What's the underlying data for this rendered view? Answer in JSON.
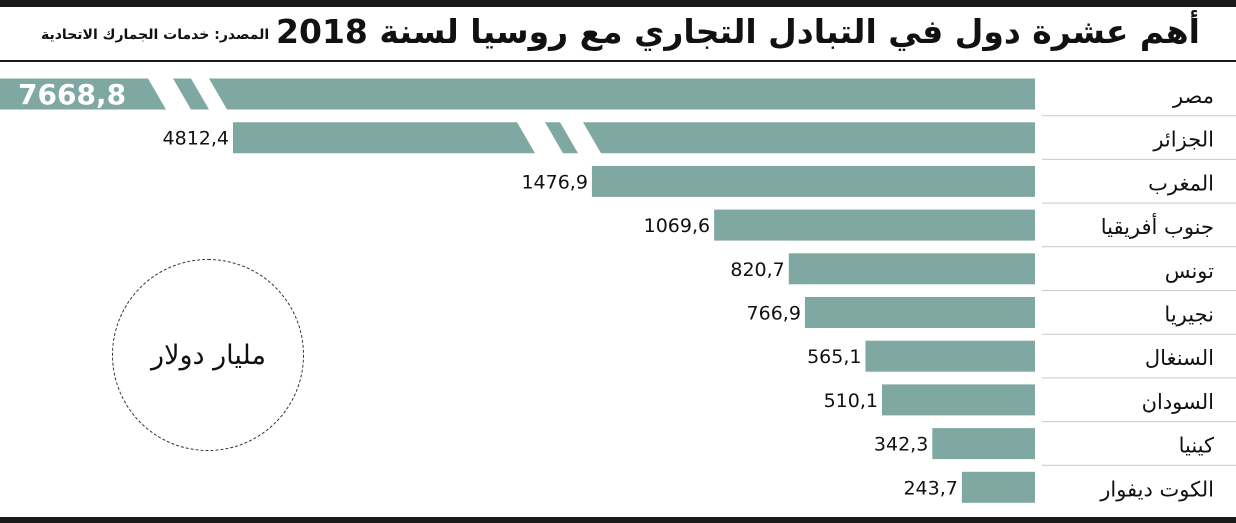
{
  "title": "أهم عشرة دول في التبادل التجاري مع روسيا لسنة 2018",
  "source": "المصدر: خدمات الجمارك الاتحادية",
  "unit": "مليار دولار",
  "colors": {
    "bar": "#7fa8a2",
    "rule": "#1a1a1a",
    "separator": "#c9c9c9"
  },
  "chart_data": {
    "type": "bar",
    "orientation": "horizontal",
    "axis_break": [
      "مصر",
      "الجزائر"
    ],
    "categories": [
      "مصر",
      "الجزائر",
      "المغرب",
      "جنوب أفريقيا",
      "تونس",
      "نجيريا",
      "السنغال",
      "السودان",
      "كينيا",
      "الكوت ديفوار"
    ],
    "values": [
      7668.8,
      4812.4,
      1476.9,
      1069.6,
      820.7,
      766.9,
      565.1,
      510.1,
      342.3,
      243.7
    ],
    "value_labels": [
      "7668,8",
      "4812,4",
      "1476,9",
      "1069,6",
      "820,7",
      "766,9",
      "565,1",
      "510,1",
      "342,3",
      "243,7"
    ],
    "unit": "مليار دولار"
  }
}
